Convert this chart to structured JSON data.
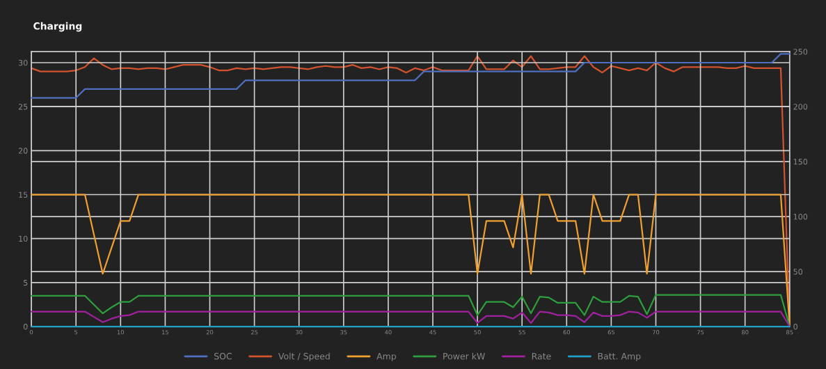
{
  "chart_data": {
    "type": "line",
    "title": "Charging",
    "x": [
      0,
      1,
      2,
      3,
      4,
      5,
      6,
      7,
      8,
      9,
      10,
      11,
      12,
      13,
      14,
      15,
      16,
      17,
      18,
      19,
      20,
      21,
      22,
      23,
      24,
      25,
      26,
      27,
      28,
      29,
      30,
      31,
      32,
      33,
      34,
      35,
      36,
      37,
      38,
      39,
      40,
      41,
      42,
      43,
      44,
      45,
      46,
      47,
      48,
      49,
      50,
      51,
      52,
      53,
      54,
      55,
      56,
      57,
      58,
      59,
      60,
      61,
      62,
      63,
      64,
      65,
      66,
      67,
      68,
      69,
      70,
      71,
      72,
      73,
      74,
      75,
      76,
      77,
      78,
      79,
      80,
      81,
      82,
      83,
      84,
      85
    ],
    "series": [
      {
        "name": "SOC",
        "color": "#4f6fc0",
        "values": [
          26,
          26,
          26,
          26,
          26,
          26,
          27,
          27,
          27,
          27,
          27,
          27,
          27,
          27,
          27,
          27,
          27,
          27,
          27,
          27,
          27,
          27,
          27,
          27,
          28,
          28,
          28,
          28,
          28,
          28,
          28,
          28,
          28,
          28,
          28,
          28,
          28,
          28,
          28,
          28,
          28,
          28,
          28,
          28,
          29,
          29,
          29,
          29,
          29,
          29,
          29,
          29,
          29,
          29,
          29,
          29,
          29,
          29,
          29,
          29,
          29,
          29,
          30,
          30,
          30,
          30,
          30,
          30,
          30,
          30,
          30,
          30,
          30,
          30,
          30,
          30,
          30,
          30,
          30,
          30,
          30,
          30,
          30,
          30,
          31,
          31
        ]
      },
      {
        "name": "Volt / Speed",
        "color": "#d3532e",
        "axis": "y2",
        "values": [
          235,
          232,
          232,
          232,
          232,
          233,
          236,
          244,
          238,
          234,
          235,
          235,
          234,
          235,
          235,
          234,
          236,
          238,
          238,
          238,
          236,
          233,
          233,
          235,
          234,
          235,
          234,
          235,
          236,
          236,
          235,
          234,
          236,
          237,
          236,
          236,
          238,
          235,
          236,
          234,
          236,
          235,
          231,
          235,
          233,
          236,
          233,
          233,
          233,
          233,
          246,
          234,
          234,
          234,
          242,
          236,
          246,
          234,
          234,
          235,
          236,
          236,
          246,
          236,
          231,
          237,
          235,
          233,
          235,
          233,
          240,
          235,
          232,
          236,
          236,
          236,
          236,
          236,
          235,
          235,
          237,
          235,
          235,
          235,
          235,
          0
        ]
      },
      {
        "name": "Amp",
        "color": "#f0a030",
        "values": [
          15,
          15,
          15,
          15,
          15,
          15,
          15,
          10.5,
          6,
          9,
          12,
          12,
          15,
          15,
          15,
          15,
          15,
          15,
          15,
          15,
          15,
          15,
          15,
          15,
          15,
          15,
          15,
          15,
          15,
          15,
          15,
          15,
          15,
          15,
          15,
          15,
          15,
          15,
          15,
          15,
          15,
          15,
          15,
          15,
          15,
          15,
          15,
          15,
          15,
          15,
          6,
          12,
          12,
          12,
          9,
          15,
          6,
          15,
          15,
          12,
          12,
          12,
          6,
          15,
          12,
          12,
          12,
          15,
          15,
          6,
          15,
          15,
          15,
          15,
          15,
          15,
          15,
          15,
          15,
          15,
          15,
          15,
          15,
          15,
          15,
          0
        ]
      },
      {
        "name": "Power kW",
        "color": "#2e9e3e",
        "values": [
          3.5,
          3.5,
          3.5,
          3.5,
          3.5,
          3.5,
          3.5,
          2.5,
          1.5,
          2.2,
          2.8,
          2.8,
          3.5,
          3.5,
          3.5,
          3.5,
          3.5,
          3.5,
          3.5,
          3.5,
          3.5,
          3.5,
          3.5,
          3.5,
          3.5,
          3.5,
          3.5,
          3.5,
          3.5,
          3.5,
          3.5,
          3.5,
          3.5,
          3.5,
          3.5,
          3.5,
          3.5,
          3.5,
          3.5,
          3.5,
          3.5,
          3.5,
          3.5,
          3.5,
          3.5,
          3.5,
          3.5,
          3.5,
          3.5,
          3.5,
          1.3,
          2.8,
          2.8,
          2.8,
          2.2,
          3.4,
          1.5,
          3.4,
          3.3,
          2.7,
          2.7,
          2.7,
          1.3,
          3.4,
          2.8,
          2.8,
          2.8,
          3.5,
          3.4,
          1.4,
          3.6,
          3.6,
          3.6,
          3.6,
          3.6,
          3.6,
          3.6,
          3.6,
          3.6,
          3.6,
          3.6,
          3.6,
          3.6,
          3.6,
          3.6,
          0
        ]
      },
      {
        "name": "Rate",
        "color": "#a020a0",
        "values": [
          1.7,
          1.7,
          1.7,
          1.7,
          1.7,
          1.7,
          1.7,
          1.1,
          0.5,
          0.9,
          1.2,
          1.3,
          1.7,
          1.7,
          1.7,
          1.7,
          1.7,
          1.7,
          1.7,
          1.7,
          1.7,
          1.7,
          1.7,
          1.7,
          1.7,
          1.7,
          1.7,
          1.7,
          1.7,
          1.7,
          1.7,
          1.7,
          1.7,
          1.7,
          1.7,
          1.7,
          1.7,
          1.7,
          1.7,
          1.7,
          1.7,
          1.7,
          1.7,
          1.7,
          1.7,
          1.7,
          1.7,
          1.7,
          1.7,
          1.7,
          0.4,
          1.2,
          1.2,
          1.2,
          0.9,
          1.6,
          0.4,
          1.7,
          1.6,
          1.3,
          1.3,
          1.2,
          0.5,
          1.6,
          1.2,
          1.2,
          1.3,
          1.7,
          1.6,
          1.0,
          1.7,
          1.7,
          1.7,
          1.7,
          1.7,
          1.7,
          1.7,
          1.7,
          1.7,
          1.7,
          1.7,
          1.7,
          1.7,
          1.7,
          1.7,
          0
        ]
      },
      {
        "name": "Batt. Amp",
        "color": "#20a0c8",
        "values": [
          0,
          0,
          0,
          0,
          0,
          0,
          0,
          0,
          0,
          0,
          0,
          0,
          0,
          0,
          0,
          0,
          0,
          0,
          0,
          0,
          0,
          0,
          0,
          0,
          0,
          0,
          0,
          0,
          0,
          0,
          0,
          0,
          0,
          0,
          0,
          0,
          0,
          0,
          0,
          0,
          0,
          0,
          0,
          0,
          0,
          0,
          0,
          0,
          0,
          0,
          0,
          0,
          0,
          0,
          0,
          0,
          0,
          0,
          0,
          0,
          0,
          0,
          0,
          0,
          0,
          0,
          0,
          0,
          0,
          0,
          0,
          0,
          0,
          0,
          0,
          0,
          0,
          0,
          0,
          0,
          0,
          0,
          0,
          0,
          0,
          0
        ]
      }
    ],
    "xlim": [
      0,
      85
    ],
    "xticks": [
      0,
      5,
      10,
      15,
      20,
      25,
      30,
      35,
      40,
      45,
      50,
      55,
      60,
      65,
      70,
      75,
      80,
      85
    ],
    "ylim": [
      0,
      31.25
    ],
    "yticks": [
      0,
      5,
      10,
      15,
      20,
      25,
      30
    ],
    "y2lim": [
      0,
      250
    ],
    "y2ticks": [
      0,
      50,
      100,
      150,
      200,
      250
    ],
    "grid": true,
    "legend": "bottom",
    "marker": "none",
    "line_style": "solid"
  }
}
